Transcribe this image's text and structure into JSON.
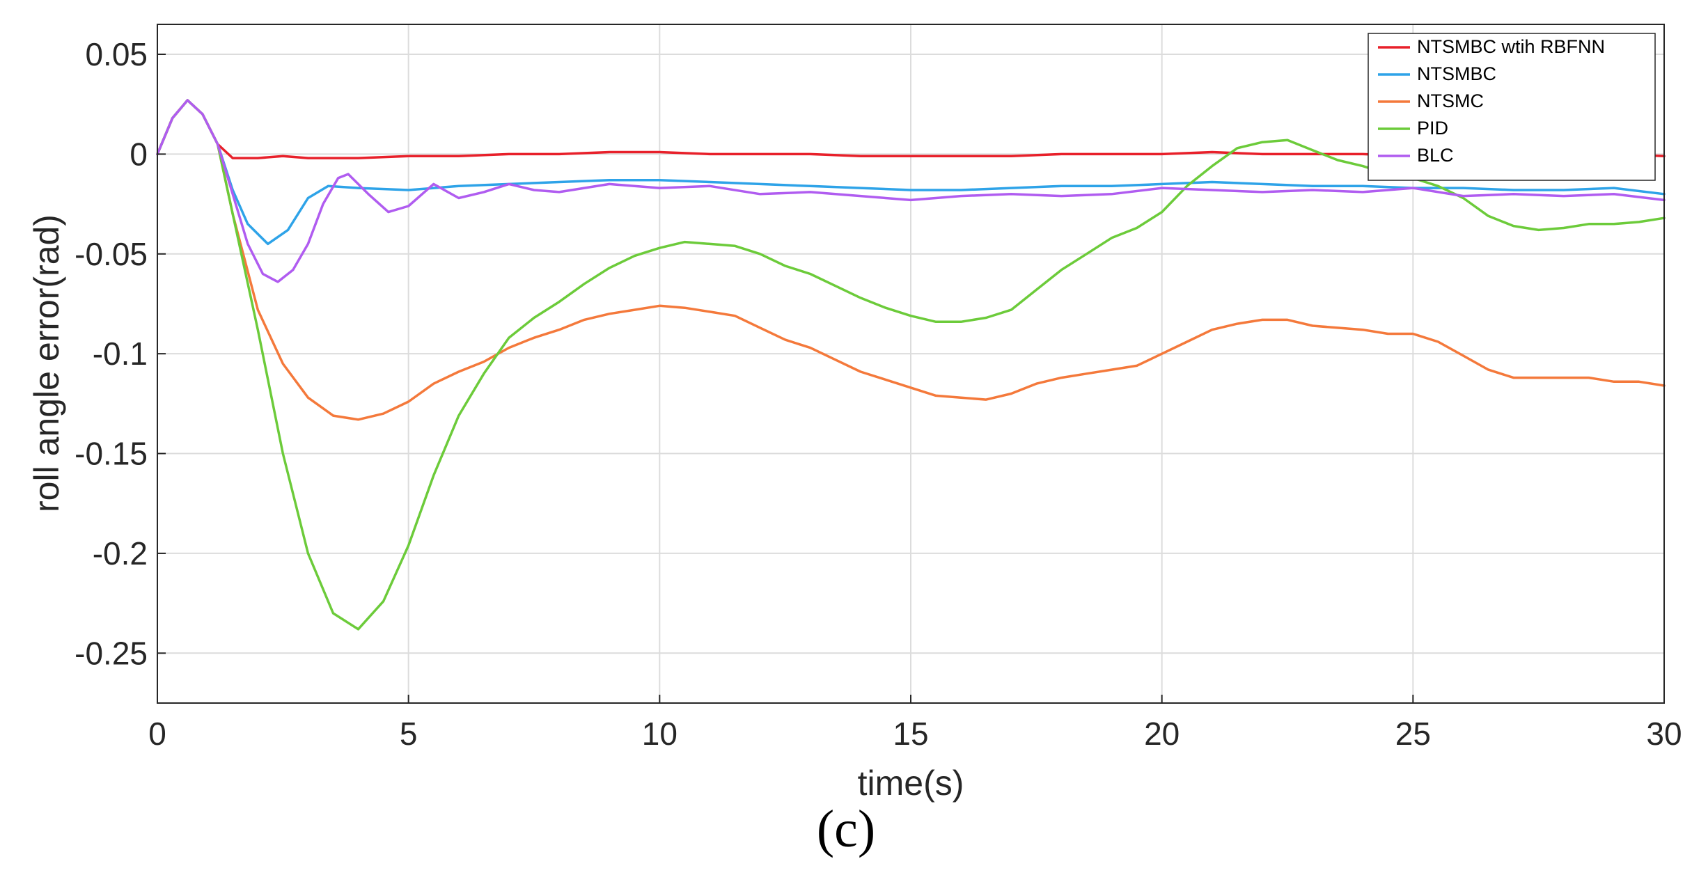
{
  "chart_data": {
    "type": "line",
    "title": "",
    "xlabel": "time(s)",
    "ylabel": "roll angle error(rad)",
    "xlim": [
      0,
      30
    ],
    "ylim": [
      -0.275,
      0.065
    ],
    "xticks": [
      0,
      5,
      10,
      15,
      20,
      25,
      30
    ],
    "xtick_labels": [
      "0",
      "5",
      "10",
      "15",
      "20",
      "25",
      "30"
    ],
    "yticks": [
      0.05,
      0,
      -0.05,
      -0.1,
      -0.15,
      -0.2,
      -0.25
    ],
    "ytick_labels": [
      "0.05",
      "0",
      "-0.05",
      "-0.1",
      "-0.15",
      "-0.2",
      "-0.25"
    ],
    "grid": true,
    "legend_position": "top-right",
    "series": [
      {
        "name": "NTSMBC wtih RBFNN",
        "color": "#e8202a",
        "points": [
          [
            0,
            0
          ],
          [
            0.3,
            0.018
          ],
          [
            0.6,
            0.027
          ],
          [
            0.9,
            0.02
          ],
          [
            1.2,
            0.005
          ],
          [
            1.5,
            -0.002
          ],
          [
            2,
            -0.002
          ],
          [
            2.5,
            -0.001
          ],
          [
            3,
            -0.002
          ],
          [
            4,
            -0.002
          ],
          [
            5,
            -0.001
          ],
          [
            6,
            -0.001
          ],
          [
            7,
            0
          ],
          [
            8,
            0
          ],
          [
            9,
            0.001
          ],
          [
            10,
            0.001
          ],
          [
            11,
            0
          ],
          [
            12,
            0
          ],
          [
            13,
            0
          ],
          [
            14,
            -0.001
          ],
          [
            15,
            -0.001
          ],
          [
            16,
            -0.001
          ],
          [
            17,
            -0.001
          ],
          [
            18,
            0
          ],
          [
            19,
            0
          ],
          [
            20,
            0
          ],
          [
            21,
            0.001
          ],
          [
            22,
            0
          ],
          [
            23,
            0
          ],
          [
            24,
            0
          ],
          [
            25,
            -0.001
          ],
          [
            26,
            0
          ],
          [
            27,
            0
          ],
          [
            28,
            0
          ],
          [
            29,
            0
          ],
          [
            30,
            -0.001
          ]
        ]
      },
      {
        "name": "NTSMBC",
        "color": "#2ea3e8",
        "points": [
          [
            0,
            0
          ],
          [
            0.3,
            0.018
          ],
          [
            0.6,
            0.027
          ],
          [
            0.9,
            0.02
          ],
          [
            1.2,
            0.005
          ],
          [
            1.5,
            -0.018
          ],
          [
            1.8,
            -0.035
          ],
          [
            2.2,
            -0.045
          ],
          [
            2.6,
            -0.038
          ],
          [
            3,
            -0.022
          ],
          [
            3.4,
            -0.016
          ],
          [
            4,
            -0.017
          ],
          [
            5,
            -0.018
          ],
          [
            6,
            -0.016
          ],
          [
            7,
            -0.015
          ],
          [
            8,
            -0.014
          ],
          [
            9,
            -0.013
          ],
          [
            10,
            -0.013
          ],
          [
            11,
            -0.014
          ],
          [
            12,
            -0.015
          ],
          [
            13,
            -0.016
          ],
          [
            14,
            -0.017
          ],
          [
            15,
            -0.018
          ],
          [
            16,
            -0.018
          ],
          [
            17,
            -0.017
          ],
          [
            18,
            -0.016
          ],
          [
            19,
            -0.016
          ],
          [
            20,
            -0.015
          ],
          [
            21,
            -0.014
          ],
          [
            22,
            -0.015
          ],
          [
            23,
            -0.016
          ],
          [
            24,
            -0.016
          ],
          [
            25,
            -0.017
          ],
          [
            26,
            -0.017
          ],
          [
            27,
            -0.018
          ],
          [
            28,
            -0.018
          ],
          [
            29,
            -0.017
          ],
          [
            30,
            -0.02
          ]
        ]
      },
      {
        "name": "NTSMC",
        "color": "#f4793b",
        "points": [
          [
            0,
            0
          ],
          [
            0.3,
            0.018
          ],
          [
            0.6,
            0.027
          ],
          [
            0.9,
            0.02
          ],
          [
            1.2,
            0.005
          ],
          [
            1.5,
            -0.03
          ],
          [
            2,
            -0.078
          ],
          [
            2.5,
            -0.105
          ],
          [
            3,
            -0.122
          ],
          [
            3.5,
            -0.131
          ],
          [
            4,
            -0.133
          ],
          [
            4.5,
            -0.13
          ],
          [
            5,
            -0.124
          ],
          [
            5.5,
            -0.115
          ],
          [
            6,
            -0.109
          ],
          [
            6.5,
            -0.104
          ],
          [
            7,
            -0.097
          ],
          [
            7.5,
            -0.092
          ],
          [
            8,
            -0.088
          ],
          [
            8.5,
            -0.083
          ],
          [
            9,
            -0.08
          ],
          [
            9.5,
            -0.078
          ],
          [
            10,
            -0.076
          ],
          [
            10.5,
            -0.077
          ],
          [
            11,
            -0.079
          ],
          [
            11.5,
            -0.081
          ],
          [
            12,
            -0.087
          ],
          [
            12.5,
            -0.093
          ],
          [
            13,
            -0.097
          ],
          [
            13.5,
            -0.103
          ],
          [
            14,
            -0.109
          ],
          [
            14.5,
            -0.113
          ],
          [
            15,
            -0.117
          ],
          [
            15.5,
            -0.121
          ],
          [
            16,
            -0.122
          ],
          [
            16.5,
            -0.123
          ],
          [
            17,
            -0.12
          ],
          [
            17.5,
            -0.115
          ],
          [
            18,
            -0.112
          ],
          [
            18.5,
            -0.11
          ],
          [
            19,
            -0.108
          ],
          [
            19.5,
            -0.106
          ],
          [
            20,
            -0.1
          ],
          [
            20.5,
            -0.094
          ],
          [
            21,
            -0.088
          ],
          [
            21.5,
            -0.085
          ],
          [
            22,
            -0.083
          ],
          [
            22.5,
            -0.083
          ],
          [
            23,
            -0.086
          ],
          [
            23.5,
            -0.087
          ],
          [
            24,
            -0.088
          ],
          [
            24.5,
            -0.09
          ],
          [
            25,
            -0.09
          ],
          [
            25.5,
            -0.094
          ],
          [
            26,
            -0.101
          ],
          [
            26.5,
            -0.108
          ],
          [
            27,
            -0.112
          ],
          [
            27.5,
            -0.112
          ],
          [
            28,
            -0.112
          ],
          [
            28.5,
            -0.112
          ],
          [
            29,
            -0.114
          ],
          [
            29.5,
            -0.114
          ],
          [
            30,
            -0.116
          ]
        ]
      },
      {
        "name": "PID",
        "color": "#6ccb3a",
        "points": [
          [
            0,
            0
          ],
          [
            0.3,
            0.018
          ],
          [
            0.6,
            0.027
          ],
          [
            0.9,
            0.02
          ],
          [
            1.2,
            0.005
          ],
          [
            1.5,
            -0.03
          ],
          [
            2,
            -0.088
          ],
          [
            2.5,
            -0.15
          ],
          [
            3,
            -0.2
          ],
          [
            3.5,
            -0.23
          ],
          [
            4,
            -0.238
          ],
          [
            4.5,
            -0.224
          ],
          [
            5,
            -0.196
          ],
          [
            5.5,
            -0.161
          ],
          [
            6,
            -0.131
          ],
          [
            6.5,
            -0.11
          ],
          [
            7,
            -0.092
          ],
          [
            7.5,
            -0.082
          ],
          [
            8,
            -0.074
          ],
          [
            8.5,
            -0.065
          ],
          [
            9,
            -0.057
          ],
          [
            9.5,
            -0.051
          ],
          [
            10,
            -0.047
          ],
          [
            10.5,
            -0.044
          ],
          [
            11,
            -0.045
          ],
          [
            11.5,
            -0.046
          ],
          [
            12,
            -0.05
          ],
          [
            12.5,
            -0.056
          ],
          [
            13,
            -0.06
          ],
          [
            13.5,
            -0.066
          ],
          [
            14,
            -0.072
          ],
          [
            14.5,
            -0.077
          ],
          [
            15,
            -0.081
          ],
          [
            15.5,
            -0.084
          ],
          [
            16,
            -0.084
          ],
          [
            16.5,
            -0.082
          ],
          [
            17,
            -0.078
          ],
          [
            17.5,
            -0.068
          ],
          [
            18,
            -0.058
          ],
          [
            18.5,
            -0.05
          ],
          [
            19,
            -0.042
          ],
          [
            19.5,
            -0.037
          ],
          [
            20,
            -0.029
          ],
          [
            20.5,
            -0.016
          ],
          [
            21,
            -0.006
          ],
          [
            21.5,
            0.003
          ],
          [
            22,
            0.006
          ],
          [
            22.5,
            0.007
          ],
          [
            23,
            0.002
          ],
          [
            23.5,
            -0.003
          ],
          [
            24,
            -0.006
          ],
          [
            24.5,
            -0.01
          ],
          [
            25,
            -0.012
          ],
          [
            25.5,
            -0.016
          ],
          [
            26,
            -0.022
          ],
          [
            26.5,
            -0.031
          ],
          [
            27,
            -0.036
          ],
          [
            27.5,
            -0.038
          ],
          [
            28,
            -0.037
          ],
          [
            28.5,
            -0.035
          ],
          [
            29,
            -0.035
          ],
          [
            29.5,
            -0.034
          ],
          [
            30,
            -0.032
          ]
        ]
      },
      {
        "name": "BLC",
        "color": "#b05cf0",
        "points": [
          [
            0,
            0
          ],
          [
            0.3,
            0.018
          ],
          [
            0.6,
            0.027
          ],
          [
            0.9,
            0.02
          ],
          [
            1.2,
            0.005
          ],
          [
            1.5,
            -0.02
          ],
          [
            1.8,
            -0.045
          ],
          [
            2.1,
            -0.06
          ],
          [
            2.4,
            -0.064
          ],
          [
            2.7,
            -0.058
          ],
          [
            3,
            -0.045
          ],
          [
            3.3,
            -0.025
          ],
          [
            3.6,
            -0.012
          ],
          [
            3.8,
            -0.01
          ],
          [
            4.2,
            -0.02
          ],
          [
            4.6,
            -0.029
          ],
          [
            5,
            -0.026
          ],
          [
            5.5,
            -0.015
          ],
          [
            6,
            -0.022
          ],
          [
            6.5,
            -0.019
          ],
          [
            7,
            -0.015
          ],
          [
            7.5,
            -0.018
          ],
          [
            8,
            -0.019
          ],
          [
            9,
            -0.015
          ],
          [
            10,
            -0.017
          ],
          [
            11,
            -0.016
          ],
          [
            12,
            -0.02
          ],
          [
            13,
            -0.019
          ],
          [
            14,
            -0.021
          ],
          [
            15,
            -0.023
          ],
          [
            16,
            -0.021
          ],
          [
            17,
            -0.02
          ],
          [
            18,
            -0.021
          ],
          [
            19,
            -0.02
          ],
          [
            20,
            -0.017
          ],
          [
            21,
            -0.018
          ],
          [
            22,
            -0.019
          ],
          [
            23,
            -0.018
          ],
          [
            24,
            -0.019
          ],
          [
            25,
            -0.017
          ],
          [
            26,
            -0.021
          ],
          [
            27,
            -0.02
          ],
          [
            28,
            -0.021
          ],
          [
            29,
            -0.02
          ],
          [
            30,
            -0.023
          ]
        ]
      }
    ]
  },
  "caption": "(c)"
}
